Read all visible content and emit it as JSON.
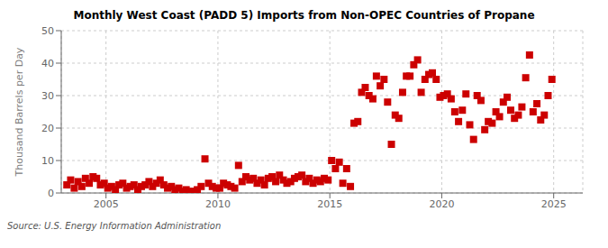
{
  "chart_data": {
    "type": "scatter",
    "title": "Monthly West Coast (PADD 5) Imports from Non-OPEC Countries of Propane",
    "ylabel": "Thousand Barrels per Day",
    "annotation": "Source: U.S. Energy Information Administration",
    "color": "#cc0000",
    "marker": "square",
    "grid": true,
    "xlim": [
      2003.0,
      2026.3
    ],
    "xticks": [
      2005,
      2010,
      2015,
      2020,
      2025
    ],
    "ylim": [
      0,
      50
    ],
    "yticks": [
      0,
      10,
      20,
      30,
      40,
      50
    ],
    "x": [
      2003.25,
      2003.42,
      2003.58,
      2003.75,
      2003.92,
      2004.08,
      2004.25,
      2004.42,
      2004.58,
      2004.75,
      2004.92,
      2005.08,
      2005.25,
      2005.42,
      2005.58,
      2005.75,
      2005.92,
      2006.08,
      2006.25,
      2006.42,
      2006.58,
      2006.75,
      2006.92,
      2007.08,
      2007.25,
      2007.42,
      2007.58,
      2007.75,
      2007.92,
      2008.08,
      2008.25,
      2008.42,
      2008.58,
      2008.75,
      2008.92,
      2009.08,
      2009.25,
      2009.42,
      2009.58,
      2009.75,
      2009.92,
      2010.08,
      2010.25,
      2010.42,
      2010.58,
      2010.75,
      2010.92,
      2011.08,
      2011.25,
      2011.42,
      2011.58,
      2011.75,
      2011.92,
      2012.08,
      2012.25,
      2012.42,
      2012.58,
      2012.75,
      2012.92,
      2013.08,
      2013.25,
      2013.42,
      2013.58,
      2013.75,
      2013.92,
      2014.08,
      2014.25,
      2014.42,
      2014.58,
      2014.75,
      2014.92,
      2015.08,
      2015.25,
      2015.42,
      2015.58,
      2015.75,
      2015.92,
      2016.08,
      2016.25,
      2016.42,
      2016.58,
      2016.75,
      2016.92,
      2017.08,
      2017.25,
      2017.42,
      2017.58,
      2017.75,
      2017.92,
      2018.08,
      2018.25,
      2018.42,
      2018.58,
      2018.75,
      2018.92,
      2019.08,
      2019.25,
      2019.42,
      2019.58,
      2019.75,
      2019.92,
      2020.08,
      2020.25,
      2020.42,
      2020.58,
      2020.75,
      2020.92,
      2021.08,
      2021.25,
      2021.42,
      2021.58,
      2021.75,
      2021.92,
      2022.08,
      2022.25,
      2022.42,
      2022.58,
      2022.75,
      2022.92,
      2023.08,
      2023.25,
      2023.42,
      2023.58,
      2023.75,
      2023.92,
      2024.08,
      2024.25,
      2024.42,
      2024.58,
      2024.75,
      2024.92
    ],
    "values": [
      2.5,
      4.0,
      1.5,
      3.5,
      2.0,
      4.5,
      3.0,
      5.0,
      4.5,
      2.5,
      3.0,
      1.5,
      2.0,
      1.0,
      2.5,
      3.0,
      1.5,
      2.0,
      2.5,
      1.0,
      2.0,
      2.5,
      3.5,
      2.0,
      3.0,
      4.0,
      2.5,
      1.5,
      2.0,
      1.0,
      1.5,
      0.5,
      1.0,
      0.5,
      0.5,
      1.0,
      2.0,
      10.5,
      3.0,
      2.0,
      1.5,
      1.5,
      3.0,
      2.5,
      2.0,
      1.5,
      8.5,
      3.5,
      5.0,
      4.0,
      4.5,
      3.0,
      4.0,
      2.5,
      4.5,
      5.0,
      3.5,
      5.5,
      4.0,
      3.0,
      3.5,
      4.5,
      5.0,
      5.5,
      3.5,
      4.5,
      3.0,
      4.0,
      3.5,
      4.5,
      4.0,
      10.0,
      7.5,
      9.5,
      3.0,
      7.5,
      2.0,
      21.5,
      22.0,
      31.0,
      32.5,
      30.0,
      29.0,
      36.0,
      33.0,
      35.0,
      28.0,
      15.0,
      24.0,
      23.0,
      31.0,
      36.0,
      36.0,
      39.5,
      41.0,
      31.0,
      35.0,
      36.5,
      37.0,
      35.0,
      29.5,
      30.0,
      30.5,
      29.0,
      25.0,
      22.0,
      25.5,
      30.5,
      21.0,
      16.5,
      30.0,
      28.5,
      19.5,
      22.0,
      21.5,
      25.0,
      23.5,
      28.0,
      29.5,
      25.5,
      23.0,
      24.0,
      26.5,
      35.5,
      42.5,
      25.0,
      27.5,
      22.5,
      24.0,
      30.0,
      35.0
    ]
  }
}
